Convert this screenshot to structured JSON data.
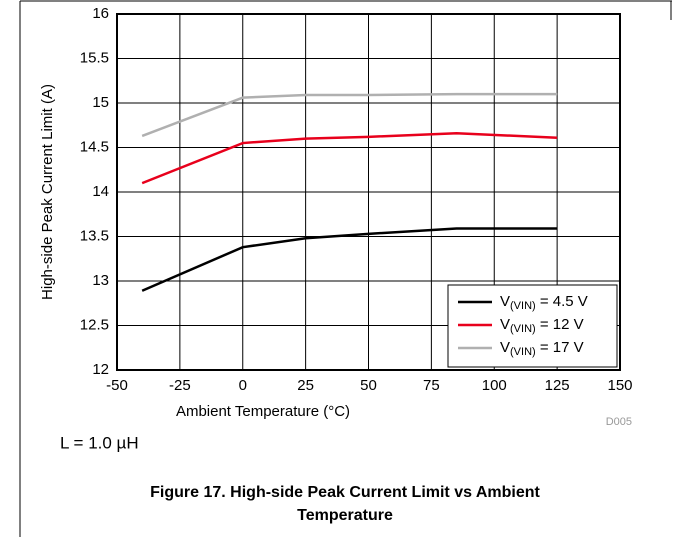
{
  "chart_data": {
    "type": "line",
    "xlabel": "Ambient Temperature (°C)",
    "ylabel": "High-side Peak Current Limit (A)",
    "x": [
      -40,
      0,
      25,
      50,
      85,
      125
    ],
    "series": [
      {
        "name": "V(VIN) = 4.5 V",
        "color": "#000000",
        "values": [
          12.89,
          13.38,
          13.48,
          13.53,
          13.59,
          13.59
        ]
      },
      {
        "name": "V(VIN) = 12 V",
        "color": "#e8001c",
        "values": [
          14.1,
          14.55,
          14.6,
          14.62,
          14.66,
          14.61
        ]
      },
      {
        "name": "V(VIN) = 17 V",
        "color": "#b0b0b0",
        "values": [
          14.63,
          15.06,
          15.09,
          15.09,
          15.1,
          15.1
        ]
      }
    ],
    "xlim": [
      -50,
      150
    ],
    "xticks": [
      -50,
      -25,
      0,
      25,
      50,
      75,
      100,
      125,
      150
    ],
    "ylim": [
      12,
      16
    ],
    "yticks": [
      12,
      12.5,
      13,
      13.5,
      14,
      14.5,
      15,
      15.5,
      16
    ],
    "grid": true,
    "legend": "lower right",
    "annotations": [
      "D005",
      "L = 1.0 µH"
    ],
    "caption": "Figure 17. High-side Peak Current Limit vs Ambient Temperature"
  }
}
